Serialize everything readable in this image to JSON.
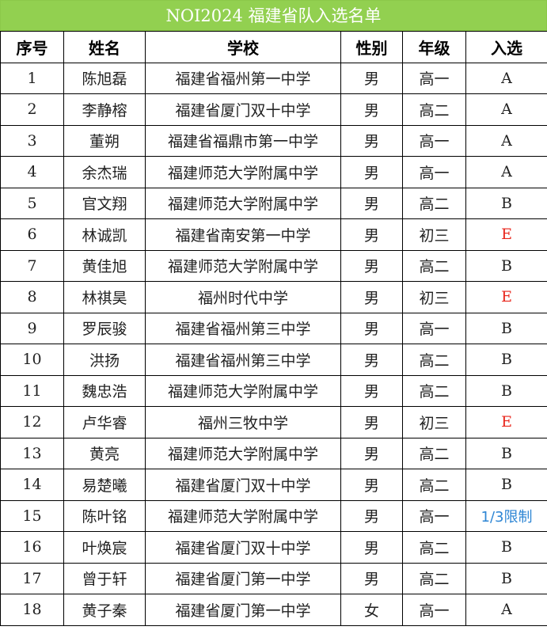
{
  "title": "NOI2024 福建省队入选名单",
  "headers": [
    "序号",
    "姓名",
    "学校",
    "性别",
    "年级",
    "入选"
  ],
  "colors": {
    "title_bg": "#92d050",
    "E": "#e8261c",
    "limit": "#2e86d4"
  },
  "rows": [
    [
      "1",
      "陈旭磊",
      "福建省福州第一中学",
      "男",
      "高一",
      "A"
    ],
    [
      "2",
      "李静榕",
      "福建省厦门双十中学",
      "男",
      "高二",
      "A"
    ],
    [
      "3",
      "董朔",
      "福建省福鼎市第一中学",
      "男",
      "高一",
      "A"
    ],
    [
      "4",
      "余杰瑞",
      "福建师范大学附属中学",
      "男",
      "高一",
      "A"
    ],
    [
      "5",
      "官文翔",
      "福建师范大学附属中学",
      "男",
      "高二",
      "B"
    ],
    [
      "6",
      "林诚凯",
      "福建省南安第一中学",
      "男",
      "初三",
      "E"
    ],
    [
      "7",
      "黄佳旭",
      "福建师范大学附属中学",
      "男",
      "高二",
      "B"
    ],
    [
      "8",
      "林祺昊",
      "福州时代中学",
      "男",
      "初三",
      "E"
    ],
    [
      "9",
      "罗辰骏",
      "福建省福州第三中学",
      "男",
      "高一",
      "B"
    ],
    [
      "10",
      "洪扬",
      "福建省福州第三中学",
      "男",
      "高二",
      "B"
    ],
    [
      "11",
      "魏忠浩",
      "福建师范大学附属中学",
      "男",
      "高二",
      "B"
    ],
    [
      "12",
      "卢华睿",
      "福州三牧中学",
      "男",
      "初三",
      "E"
    ],
    [
      "13",
      "黄亮",
      "福建师范大学附属中学",
      "男",
      "高二",
      "B"
    ],
    [
      "14",
      "易楚曦",
      "福建省厦门双十中学",
      "男",
      "高二",
      "B"
    ],
    [
      "15",
      "陈叶铭",
      "福建师范大学附属中学",
      "男",
      "高一",
      "1/3限制"
    ],
    [
      "16",
      "叶焕宸",
      "福建省厦门双十中学",
      "男",
      "高二",
      "B"
    ],
    [
      "17",
      "曾于轩",
      "福建省厦门第一中学",
      "男",
      "高二",
      "B"
    ],
    [
      "18",
      "黄子秦",
      "福建省厦门第一中学",
      "女",
      "高一",
      "A"
    ]
  ]
}
